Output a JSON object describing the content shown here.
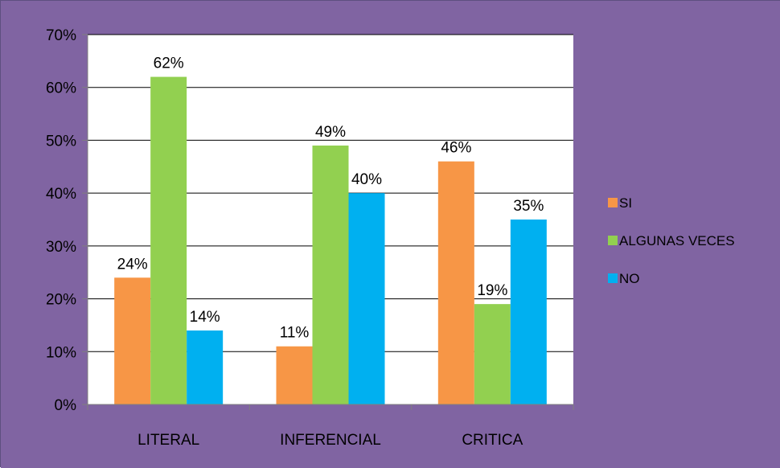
{
  "colors": {
    "background": "#8064a2",
    "plot_area": "#ffffff",
    "gridline": "#000000"
  },
  "chart_data": {
    "type": "bar",
    "title": "",
    "xlabel": "",
    "ylabel": "",
    "categories": [
      "LITERAL",
      "INFERENCIAL",
      "CRITICA"
    ],
    "y_ticks": [
      "0%",
      "10%",
      "20%",
      "30%",
      "40%",
      "50%",
      "60%",
      "70%"
    ],
    "ylim": [
      0,
      70
    ],
    "grid": true,
    "legend_position": "right",
    "series": [
      {
        "name": "SI",
        "color": "#f79646",
        "values": [
          24,
          11,
          46
        ],
        "labels": [
          "24%",
          "11%",
          "46%"
        ]
      },
      {
        "name": "ALGUNAS VECES",
        "color": "#92d050",
        "values": [
          62,
          49,
          19
        ],
        "labels": [
          "62%",
          "49%",
          "19%"
        ]
      },
      {
        "name": "NO",
        "color": "#00b0f0",
        "values": [
          14,
          40,
          35
        ],
        "labels": [
          "14%",
          "40%",
          "35%"
        ]
      }
    ]
  }
}
